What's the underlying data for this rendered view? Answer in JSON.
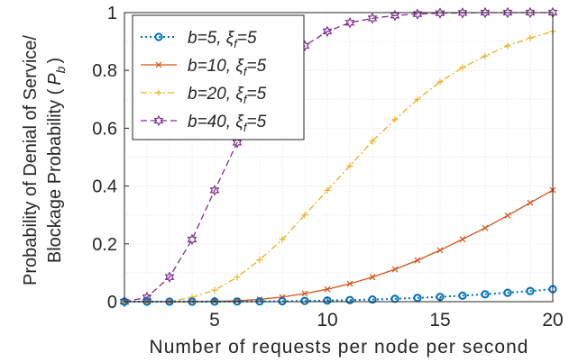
{
  "chart_data": {
    "type": "line",
    "xlabel": "Number of requests per node per second",
    "ylabel_line1": "Probability of Denial of Service/",
    "ylabel_line2": "Blockage Probability (",
    "ylabel_symbol": "P",
    "ylabel_subscript": "b",
    "ylabel_close": ")",
    "xlim": [
      1,
      20
    ],
    "ylim": [
      0,
      1
    ],
    "xticks": [
      5,
      10,
      15,
      20
    ],
    "yticks": [
      0,
      0.2,
      0.4,
      0.6,
      0.8,
      1
    ],
    "ytick_labels": [
      "0",
      "0.2",
      "0.4",
      "0.6",
      "0.8",
      "1"
    ],
    "grid": true,
    "legend_position": "top-left",
    "x": [
      1,
      2,
      3,
      4,
      5,
      6,
      7,
      8,
      9,
      10,
      11,
      12,
      13,
      14,
      15,
      16,
      17,
      18,
      19,
      20
    ],
    "series": [
      {
        "name": "b=5, ξf=5",
        "legend_main": "b=5, ",
        "legend_sym": "ξ",
        "legend_sub": "f",
        "legend_tail": "=5",
        "color": "#0072BD",
        "dash": "2,3",
        "marker": "circle",
        "values": [
          0,
          0,
          0,
          0,
          0.0003,
          0.0006,
          0.001,
          0.0017,
          0.0026,
          0.0039,
          0.0055,
          0.0075,
          0.01,
          0.0131,
          0.0166,
          0.0208,
          0.0255,
          0.0308,
          0.0368,
          0.0434
        ]
      },
      {
        "name": "b=10, ξf=5",
        "legend_main": "b=10, ",
        "legend_sym": "ξ",
        "legend_sub": "f",
        "legend_tail": "=5",
        "color": "#D95319",
        "dash": "",
        "marker": "x",
        "values": [
          0,
          0,
          0,
          0,
          0.0008,
          0.003,
          0.008,
          0.016,
          0.028,
          0.043,
          0.062,
          0.085,
          0.112,
          0.143,
          0.178,
          0.216,
          0.255,
          0.298,
          0.342,
          0.386
        ]
      },
      {
        "name": "b=20, ξf=5",
        "legend_main": "b=20, ",
        "legend_sym": "ξ",
        "legend_sub": "f",
        "legend_tail": "=5",
        "color": "#EDB120",
        "dash": "7,3,2,3",
        "marker": "plus",
        "values": [
          0,
          0,
          0,
          0.015,
          0.04,
          0.085,
          0.145,
          0.215,
          0.3,
          0.385,
          0.47,
          0.555,
          0.63,
          0.7,
          0.76,
          0.81,
          0.85,
          0.885,
          0.912,
          0.935
        ]
      },
      {
        "name": "b=40, ξf=5",
        "legend_main": "b=40, ",
        "legend_sym": "ξ",
        "legend_sub": "f",
        "legend_tail": "=5",
        "color": "#7E2F8E",
        "dash": "7,4",
        "marker": "hexagram",
        "values": [
          0,
          0.015,
          0.085,
          0.215,
          0.385,
          0.55,
          0.7,
          0.81,
          0.885,
          0.935,
          0.965,
          0.98,
          0.99,
          0.995,
          0.998,
          0.999,
          1,
          1,
          1,
          1
        ]
      }
    ]
  }
}
